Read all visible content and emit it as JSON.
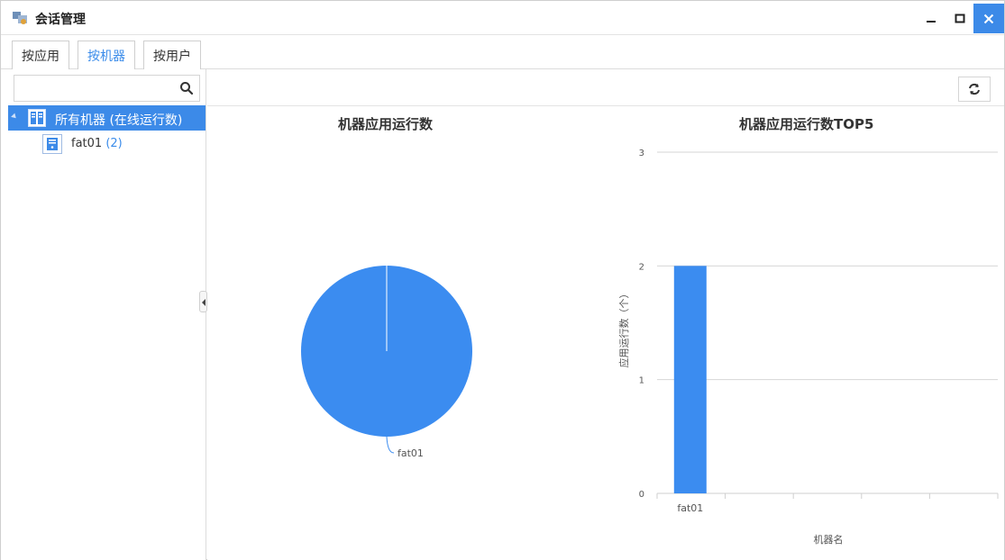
{
  "window": {
    "title": "会话管理",
    "app_icon": "session-app-icon",
    "controls": {
      "minimize": "minimize-icon",
      "maximize": "maximize-icon",
      "close": "close-icon"
    },
    "accent_color": "#3c8ae8"
  },
  "tabs": [
    {
      "label": "按应用",
      "active": false
    },
    {
      "label": "按机器",
      "active": true
    },
    {
      "label": "按用户",
      "active": false
    }
  ],
  "sidebar": {
    "search": {
      "value": "",
      "placeholder": "",
      "icon": "search-icon"
    },
    "tree": {
      "root_label": "所有机器 (在线运行数)",
      "root_icon": "server-group-icon",
      "children": [
        {
          "label": "fat01",
          "count": "(2)",
          "icon": "server-icon"
        }
      ]
    }
  },
  "toolbar": {
    "refresh_icon": "refresh-icon"
  },
  "chart_data": [
    {
      "type": "pie",
      "title": "机器应用运行数",
      "labels": [
        "fat01"
      ],
      "values": [
        2
      ],
      "colors": [
        "#3b8cf0"
      ]
    },
    {
      "type": "bar",
      "title": "机器应用运行数TOP5",
      "categories": [
        "fat01"
      ],
      "values": [
        2
      ],
      "xlabel": "机器名",
      "ylabel": "应用运行数（个）",
      "ylim": [
        0,
        3
      ],
      "yticks": [
        "0",
        "1",
        "2",
        "3"
      ],
      "grid": true,
      "color": "#3b8cf0"
    }
  ]
}
